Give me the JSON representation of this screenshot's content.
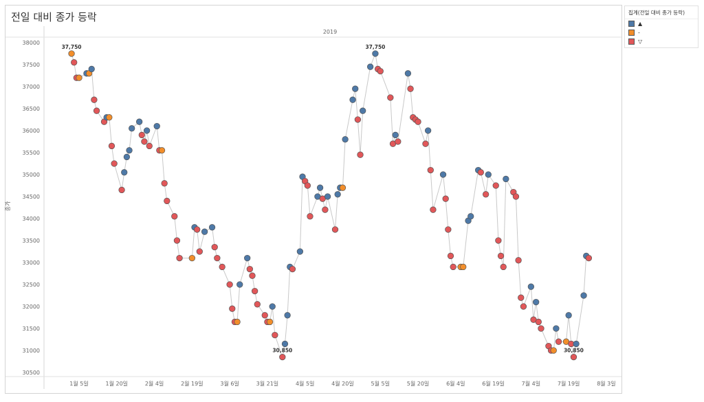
{
  "title": "전일 대비 종가 등락",
  "legend": {
    "title": "집계(전일 대비 종가 등락)",
    "items": [
      {
        "key": "up",
        "label": "▲",
        "color": "#4e79a7"
      },
      {
        "key": "same",
        "label": "-",
        "color": "#f28e2b"
      },
      {
        "key": "down",
        "label": "▽",
        "color": "#e15759"
      }
    ]
  },
  "chart_data": {
    "type": "scatter",
    "title": "전일 대비 종가 등락",
    "column_header": "2019",
    "xlabel": "",
    "ylabel": "종가",
    "x_unit": "day of year 2019",
    "ylim": [
      30500,
      38000
    ],
    "xlim": [
      0,
      218
    ],
    "yticks": [
      30500,
      31000,
      31500,
      32000,
      32500,
      33000,
      33500,
      34000,
      34500,
      35000,
      35500,
      36000,
      36500,
      37000,
      37500,
      38000
    ],
    "xticks": [
      {
        "day": 5,
        "label": "1월 5일"
      },
      {
        "day": 20,
        "label": "1월 20일"
      },
      {
        "day": 35,
        "label": "2월 4일"
      },
      {
        "day": 50,
        "label": "2월 19일"
      },
      {
        "day": 65,
        "label": "3월 6일"
      },
      {
        "day": 80,
        "label": "3월 21일"
      },
      {
        "day": 95,
        "label": "4월 5일"
      },
      {
        "day": 110,
        "label": "4월 20일"
      },
      {
        "day": 125,
        "label": "5월 5일"
      },
      {
        "day": 140,
        "label": "5월 20일"
      },
      {
        "day": 155,
        "label": "6월 4일"
      },
      {
        "day": 170,
        "label": "6월 19일"
      },
      {
        "day": 185,
        "label": "7월 4일"
      },
      {
        "day": 200,
        "label": "7월 19일"
      },
      {
        "day": 215,
        "label": "8월 3일"
      }
    ],
    "grid": false,
    "legend_position": "right",
    "points": [
      [
        2,
        37750,
        "same"
      ],
      [
        3,
        37550,
        "down"
      ],
      [
        4,
        37200,
        "down"
      ],
      [
        5,
        37200,
        "same"
      ],
      [
        8,
        37300,
        "up"
      ],
      [
        9,
        37300,
        "same"
      ],
      [
        10,
        37400,
        "up"
      ],
      [
        11,
        36700,
        "down"
      ],
      [
        12,
        36450,
        "down"
      ],
      [
        15,
        36200,
        "down"
      ],
      [
        16,
        36300,
        "up"
      ],
      [
        17,
        36300,
        "same"
      ],
      [
        18,
        35650,
        "down"
      ],
      [
        19,
        35250,
        "down"
      ],
      [
        22,
        34650,
        "down"
      ],
      [
        23,
        35050,
        "up"
      ],
      [
        24,
        35400,
        "up"
      ],
      [
        25,
        35550,
        "up"
      ],
      [
        26,
        36050,
        "up"
      ],
      [
        29,
        36200,
        "up"
      ],
      [
        30,
        35900,
        "down"
      ],
      [
        31,
        35750,
        "down"
      ],
      [
        32,
        36000,
        "up"
      ],
      [
        33,
        35650,
        "down"
      ],
      [
        36,
        36100,
        "up"
      ],
      [
        37,
        35550,
        "down"
      ],
      [
        38,
        35550,
        "same"
      ],
      [
        39,
        34800,
        "down"
      ],
      [
        40,
        34400,
        "down"
      ],
      [
        43,
        34050,
        "down"
      ],
      [
        44,
        33500,
        "down"
      ],
      [
        45,
        33100,
        "down"
      ],
      [
        50,
        33100,
        "same"
      ],
      [
        51,
        33800,
        "up"
      ],
      [
        52,
        33750,
        "down"
      ],
      [
        53,
        33250,
        "down"
      ],
      [
        55,
        33700,
        "up"
      ],
      [
        58,
        33800,
        "up"
      ],
      [
        59,
        33350,
        "down"
      ],
      [
        60,
        33100,
        "down"
      ],
      [
        62,
        32900,
        "down"
      ],
      [
        65,
        32500,
        "down"
      ],
      [
        66,
        31950,
        "down"
      ],
      [
        67,
        31650,
        "down"
      ],
      [
        68,
        31650,
        "same"
      ],
      [
        69,
        32500,
        "up"
      ],
      [
        72,
        33100,
        "up"
      ],
      [
        73,
        32850,
        "down"
      ],
      [
        74,
        32700,
        "down"
      ],
      [
        75,
        32350,
        "down"
      ],
      [
        76,
        32050,
        "down"
      ],
      [
        79,
        31800,
        "down"
      ],
      [
        80,
        31650,
        "down"
      ],
      [
        81,
        31650,
        "same"
      ],
      [
        82,
        32000,
        "up"
      ],
      [
        83,
        31350,
        "down"
      ],
      [
        86,
        30850,
        "down"
      ],
      [
        87,
        31150,
        "up"
      ],
      [
        88,
        31800,
        "up"
      ],
      [
        89,
        32900,
        "up"
      ],
      [
        90,
        32850,
        "down"
      ],
      [
        93,
        33250,
        "up"
      ],
      [
        94,
        34950,
        "up"
      ],
      [
        95,
        34850,
        "down"
      ],
      [
        96,
        34750,
        "down"
      ],
      [
        97,
        34050,
        "down"
      ],
      [
        100,
        34500,
        "up"
      ],
      [
        101,
        34700,
        "up"
      ],
      [
        102,
        34450,
        "down"
      ],
      [
        103,
        34200,
        "down"
      ],
      [
        104,
        34500,
        "up"
      ],
      [
        107,
        33750,
        "down"
      ],
      [
        108,
        34550,
        "up"
      ],
      [
        109,
        34700,
        "up"
      ],
      [
        110,
        34700,
        "same"
      ],
      [
        111,
        35800,
        "up"
      ],
      [
        114,
        36700,
        "up"
      ],
      [
        115,
        36950,
        "up"
      ],
      [
        116,
        36250,
        "down"
      ],
      [
        117,
        35450,
        "down"
      ],
      [
        118,
        36450,
        "up"
      ],
      [
        121,
        37450,
        "up"
      ],
      [
        123,
        37750,
        "up"
      ],
      [
        124,
        37400,
        "down"
      ],
      [
        125,
        37350,
        "down"
      ],
      [
        129,
        36750,
        "down"
      ],
      [
        130,
        35700,
        "down"
      ],
      [
        131,
        35900,
        "up"
      ],
      [
        132,
        35750,
        "down"
      ],
      [
        136,
        37300,
        "up"
      ],
      [
        137,
        36950,
        "down"
      ],
      [
        138,
        36300,
        "down"
      ],
      [
        139,
        36250,
        "down"
      ],
      [
        140,
        36200,
        "down"
      ],
      [
        143,
        35700,
        "down"
      ],
      [
        144,
        36000,
        "up"
      ],
      [
        145,
        35100,
        "down"
      ],
      [
        146,
        34200,
        "down"
      ],
      [
        150,
        35000,
        "up"
      ],
      [
        151,
        34450,
        "down"
      ],
      [
        152,
        33750,
        "down"
      ],
      [
        153,
        33150,
        "down"
      ],
      [
        154,
        32900,
        "down"
      ],
      [
        157,
        32900,
        "same"
      ],
      [
        158,
        32900,
        "same"
      ],
      [
        160,
        33950,
        "up"
      ],
      [
        161,
        34050,
        "up"
      ],
      [
        164,
        35100,
        "up"
      ],
      [
        165,
        35050,
        "down"
      ],
      [
        167,
        34550,
        "down"
      ],
      [
        168,
        35000,
        "up"
      ],
      [
        171,
        34750,
        "down"
      ],
      [
        172,
        33500,
        "down"
      ],
      [
        173,
        33150,
        "down"
      ],
      [
        174,
        32900,
        "down"
      ],
      [
        175,
        34900,
        "up"
      ],
      [
        178,
        34600,
        "down"
      ],
      [
        179,
        34500,
        "down"
      ],
      [
        180,
        33050,
        "down"
      ],
      [
        181,
        32200,
        "down"
      ],
      [
        182,
        32000,
        "down"
      ],
      [
        185,
        32450,
        "up"
      ],
      [
        186,
        31700,
        "down"
      ],
      [
        187,
        32100,
        "up"
      ],
      [
        188,
        31650,
        "down"
      ],
      [
        189,
        31500,
        "down"
      ],
      [
        192,
        31100,
        "down"
      ],
      [
        193,
        31000,
        "down"
      ],
      [
        194,
        31000,
        "same"
      ],
      [
        195,
        31500,
        "up"
      ],
      [
        196,
        31200,
        "down"
      ],
      [
        199,
        31200,
        "same"
      ],
      [
        200,
        31800,
        "up"
      ],
      [
        201,
        31150,
        "down"
      ],
      [
        202,
        30850,
        "down"
      ],
      [
        203,
        31150,
        "up"
      ],
      [
        206,
        32250,
        "up"
      ],
      [
        207,
        33150,
        "up"
      ],
      [
        208,
        33100,
        "down"
      ]
    ],
    "annotations": [
      {
        "day": 2,
        "value": 37750,
        "text": "37,750"
      },
      {
        "day": 123,
        "value": 37750,
        "text": "37,750"
      },
      {
        "day": 86,
        "value": 30850,
        "text": "30,850"
      },
      {
        "day": 202,
        "value": 30850,
        "text": "30,850"
      }
    ]
  }
}
